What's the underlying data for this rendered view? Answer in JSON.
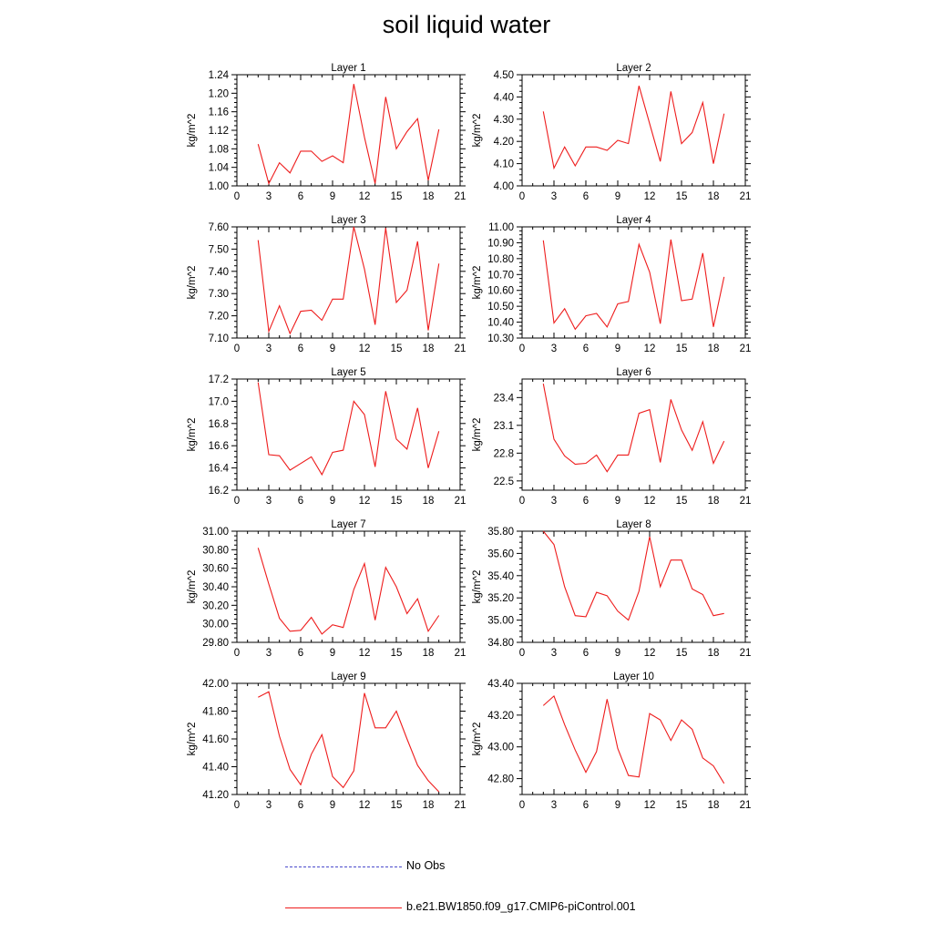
{
  "title": "soil liquid water",
  "legend": [
    {
      "label": "No Obs",
      "color": "#4a4acc",
      "dash": true
    },
    {
      "label": "b.e21.BW1850.f09_g17.CMIP6-piControl.001",
      "color": "#ee1c1c",
      "dash": false
    }
  ],
  "chart_data": [
    {
      "type": "line",
      "title": "Layer 1",
      "ylabel": "kg/m^2",
      "xlim": [
        0,
        21
      ],
      "ylim": [
        1.0,
        1.24
      ],
      "xticks": [
        "0",
        "3",
        "6",
        "9",
        "12",
        "15",
        "18",
        "21"
      ],
      "yticks": [
        "1.00",
        "1.04",
        "1.08",
        "1.12",
        "1.16",
        "1.20",
        "1.24"
      ],
      "x": [
        2,
        3,
        4,
        5,
        6,
        7,
        8,
        9,
        10,
        11,
        12,
        13,
        14,
        15,
        16,
        17,
        18,
        19
      ],
      "series": [
        {
          "name": "b.e21.BW1850.f09_g17.CMIP6-piControl.001",
          "color": "#ee1c1c",
          "values": [
            1.09,
            1.005,
            1.05,
            1.028,
            1.075,
            1.075,
            1.053,
            1.065,
            1.05,
            1.22,
            1.105,
            1.005,
            1.192,
            1.08,
            1.117,
            1.145,
            1.012,
            1.122
          ]
        }
      ]
    },
    {
      "type": "line",
      "title": "Layer 2",
      "ylabel": "kg/m^2",
      "xlim": [
        0,
        21
      ],
      "ylim": [
        4.0,
        4.5
      ],
      "xticks": [
        "0",
        "3",
        "6",
        "9",
        "12",
        "15",
        "18",
        "21"
      ],
      "yticks": [
        "4.00",
        "4.10",
        "4.20",
        "4.30",
        "4.40",
        "4.50"
      ],
      "x": [
        2,
        3,
        4,
        5,
        6,
        7,
        8,
        9,
        10,
        11,
        12,
        13,
        14,
        15,
        16,
        17,
        18,
        19
      ],
      "series": [
        {
          "name": "b.e21.BW1850.f09_g17.CMIP6-piControl.001",
          "color": "#ee1c1c",
          "values": [
            4.335,
            4.08,
            4.175,
            4.09,
            4.175,
            4.175,
            4.16,
            4.205,
            4.19,
            4.45,
            4.28,
            4.11,
            4.425,
            4.19,
            4.24,
            4.375,
            4.1,
            4.325
          ]
        }
      ]
    },
    {
      "type": "line",
      "title": "Layer 3",
      "ylabel": "kg/m^2",
      "xlim": [
        0,
        21
      ],
      "ylim": [
        7.1,
        7.6
      ],
      "xticks": [
        "0",
        "3",
        "6",
        "9",
        "12",
        "15",
        "18",
        "21"
      ],
      "yticks": [
        "7.10",
        "7.20",
        "7.30",
        "7.40",
        "7.50",
        "7.60"
      ],
      "x": [
        2,
        3,
        4,
        5,
        6,
        7,
        8,
        9,
        10,
        11,
        12,
        13,
        14,
        15,
        16,
        17,
        18,
        19
      ],
      "series": [
        {
          "name": "b.e21.BW1850.f09_g17.CMIP6-piControl.001",
          "color": "#ee1c1c",
          "values": [
            7.54,
            7.13,
            7.245,
            7.12,
            7.22,
            7.225,
            7.18,
            7.275,
            7.275,
            7.6,
            7.41,
            7.16,
            7.595,
            7.26,
            7.315,
            7.535,
            7.135,
            7.435
          ]
        }
      ]
    },
    {
      "type": "line",
      "title": "Layer 4",
      "ylabel": "kg/m^2",
      "xlim": [
        0,
        21
      ],
      "ylim": [
        10.3,
        11.0
      ],
      "xticks": [
        "0",
        "3",
        "6",
        "9",
        "12",
        "15",
        "18",
        "21"
      ],
      "yticks": [
        "10.30",
        "10.40",
        "10.50",
        "10.60",
        "10.70",
        "10.80",
        "10.90",
        "11.00"
      ],
      "x": [
        2,
        3,
        4,
        5,
        6,
        7,
        8,
        9,
        10,
        11,
        12,
        13,
        14,
        15,
        16,
        17,
        18,
        19
      ],
      "series": [
        {
          "name": "b.e21.BW1850.f09_g17.CMIP6-piControl.001",
          "color": "#ee1c1c",
          "values": [
            10.915,
            10.395,
            10.485,
            10.355,
            10.44,
            10.455,
            10.37,
            10.515,
            10.53,
            10.89,
            10.715,
            10.39,
            10.92,
            10.535,
            10.545,
            10.835,
            10.37,
            10.685
          ]
        }
      ]
    },
    {
      "type": "line",
      "title": "Layer 5",
      "ylabel": "kg/m^2",
      "xlim": [
        0,
        21
      ],
      "ylim": [
        16.2,
        17.2
      ],
      "xticks": [
        "0",
        "3",
        "6",
        "9",
        "12",
        "15",
        "18",
        "21"
      ],
      "yticks": [
        "16.2",
        "16.4",
        "16.6",
        "16.8",
        "17.0",
        "17.2"
      ],
      "x": [
        2,
        3,
        4,
        5,
        6,
        7,
        8,
        9,
        10,
        11,
        12,
        13,
        14,
        15,
        16,
        17,
        18,
        19
      ],
      "series": [
        {
          "name": "b.e21.BW1850.f09_g17.CMIP6-piControl.001",
          "color": "#ee1c1c",
          "values": [
            17.17,
            16.52,
            16.51,
            16.38,
            16.44,
            16.5,
            16.34,
            16.54,
            16.56,
            17.0,
            16.88,
            16.41,
            17.09,
            16.66,
            16.57,
            16.94,
            16.4,
            16.73
          ]
        }
      ]
    },
    {
      "type": "line",
      "title": "Layer 6",
      "ylabel": "kg/m^2",
      "xlim": [
        0,
        21
      ],
      "ylim": [
        22.4,
        23.6
      ],
      "xticks": [
        "0",
        "3",
        "6",
        "9",
        "12",
        "15",
        "18",
        "21"
      ],
      "yticks": [
        "22.5",
        "22.8",
        "23.1",
        "23.4"
      ],
      "x": [
        2,
        3,
        4,
        5,
        6,
        7,
        8,
        9,
        10,
        11,
        12,
        13,
        14,
        15,
        16,
        17,
        18,
        19
      ],
      "series": [
        {
          "name": "b.e21.BW1850.f09_g17.CMIP6-piControl.001",
          "color": "#ee1c1c",
          "values": [
            23.55,
            22.95,
            22.77,
            22.68,
            22.69,
            22.78,
            22.6,
            22.78,
            22.78,
            23.23,
            23.27,
            22.7,
            23.38,
            23.05,
            22.83,
            23.14,
            22.69,
            22.93
          ]
        }
      ]
    },
    {
      "type": "line",
      "title": "Layer 7",
      "ylabel": "kg/m^2",
      "xlim": [
        0,
        21
      ],
      "ylim": [
        29.8,
        31.0
      ],
      "xticks": [
        "0",
        "3",
        "6",
        "9",
        "12",
        "15",
        "18",
        "21"
      ],
      "yticks": [
        "29.80",
        "30.00",
        "30.20",
        "30.40",
        "30.60",
        "30.80",
        "31.00"
      ],
      "x": [
        2,
        3,
        4,
        5,
        6,
        7,
        8,
        9,
        10,
        11,
        12,
        13,
        14,
        15,
        16,
        17,
        18,
        19
      ],
      "series": [
        {
          "name": "b.e21.BW1850.f09_g17.CMIP6-piControl.001",
          "color": "#ee1c1c",
          "values": [
            30.82,
            30.43,
            30.06,
            29.92,
            29.93,
            30.07,
            29.89,
            29.99,
            29.96,
            30.37,
            30.65,
            30.04,
            30.61,
            30.4,
            30.11,
            30.27,
            29.92,
            30.09
          ]
        }
      ]
    },
    {
      "type": "line",
      "title": "Layer 8",
      "ylabel": "kg/m^2",
      "xlim": [
        0,
        21
      ],
      "ylim": [
        34.8,
        35.8
      ],
      "xticks": [
        "0",
        "3",
        "6",
        "9",
        "12",
        "15",
        "18",
        "21"
      ],
      "yticks": [
        "34.80",
        "35.00",
        "35.20",
        "35.40",
        "35.60",
        "35.80"
      ],
      "x": [
        2,
        3,
        4,
        5,
        6,
        7,
        8,
        9,
        10,
        11,
        12,
        13,
        14,
        15,
        16,
        17,
        18,
        19
      ],
      "series": [
        {
          "name": "b.e21.BW1850.f09_g17.CMIP6-piControl.001",
          "color": "#ee1c1c",
          "values": [
            35.8,
            35.68,
            35.3,
            35.04,
            35.03,
            35.25,
            35.22,
            35.08,
            35.0,
            35.26,
            35.75,
            35.3,
            35.54,
            35.54,
            35.28,
            35.23,
            35.04,
            35.06
          ]
        }
      ]
    },
    {
      "type": "line",
      "title": "Layer 9",
      "ylabel": "kg/m^2",
      "xlim": [
        0,
        21
      ],
      "ylim": [
        41.2,
        42.0
      ],
      "xticks": [
        "0",
        "3",
        "6",
        "9",
        "12",
        "15",
        "18",
        "21"
      ],
      "yticks": [
        "41.20",
        "41.40",
        "41.60",
        "41.80",
        "42.00"
      ],
      "x": [
        2,
        3,
        4,
        5,
        6,
        7,
        8,
        9,
        10,
        11,
        12,
        13,
        14,
        15,
        16,
        17,
        18,
        19
      ],
      "series": [
        {
          "name": "b.e21.BW1850.f09_g17.CMIP6-piControl.001",
          "color": "#ee1c1c",
          "values": [
            41.9,
            41.94,
            41.62,
            41.38,
            41.27,
            41.49,
            41.63,
            41.33,
            41.25,
            41.37,
            41.93,
            41.68,
            41.68,
            41.8,
            41.6,
            41.41,
            41.3,
            41.22
          ]
        }
      ]
    },
    {
      "type": "line",
      "title": "Layer 10",
      "ylabel": "kg/m^2",
      "xlim": [
        0,
        21
      ],
      "ylim": [
        42.7,
        43.4
      ],
      "xticks": [
        "0",
        "3",
        "6",
        "9",
        "12",
        "15",
        "18",
        "21"
      ],
      "yticks": [
        "42.80",
        "43.00",
        "43.20",
        "43.40"
      ],
      "x": [
        2,
        3,
        4,
        5,
        6,
        7,
        8,
        9,
        10,
        11,
        12,
        13,
        14,
        15,
        16,
        17,
        18,
        19
      ],
      "series": [
        {
          "name": "b.e21.BW1850.f09_g17.CMIP6-piControl.001",
          "color": "#ee1c1c",
          "values": [
            43.26,
            43.32,
            43.14,
            42.98,
            42.84,
            42.97,
            43.3,
            42.99,
            42.82,
            42.81,
            43.21,
            43.17,
            43.04,
            43.17,
            43.11,
            42.93,
            42.88,
            42.77
          ]
        }
      ]
    }
  ]
}
